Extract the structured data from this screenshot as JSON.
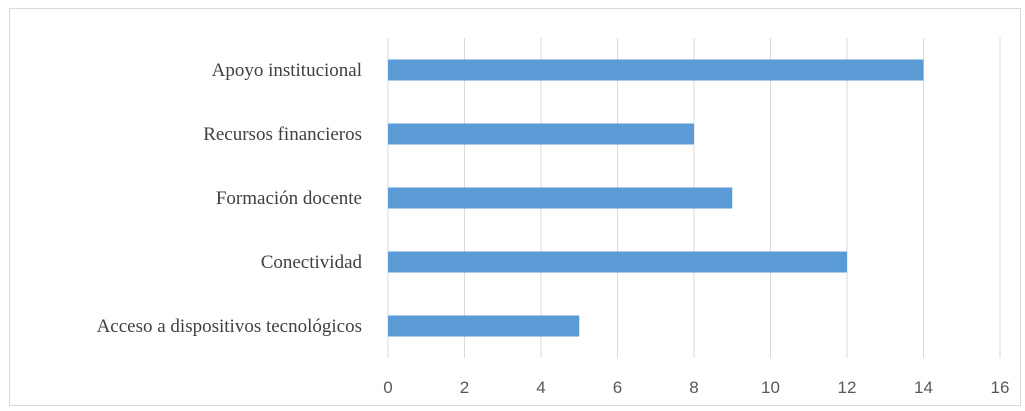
{
  "chart_data": {
    "type": "bar",
    "orientation": "horizontal",
    "categories": [
      "Apoyo institucional",
      "Recursos financieros",
      "Formación docente",
      "Conectividad",
      "Acceso a dispositivos tecnológicos"
    ],
    "values": [
      14,
      8,
      9,
      12,
      5
    ],
    "xlim": [
      0,
      16
    ],
    "xticks": [
      "0",
      "2",
      "4",
      "6",
      "8",
      "10",
      "12",
      "14",
      "16"
    ],
    "grid": true,
    "bar_color": "#5b9bd5",
    "title": "",
    "xlabel": "",
    "ylabel": ""
  }
}
